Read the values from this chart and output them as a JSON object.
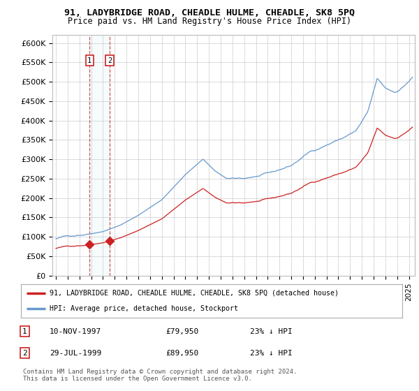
{
  "title": "91, LADYBRIDGE ROAD, CHEADLE HULME, CHEADLE, SK8 5PQ",
  "subtitle": "Price paid vs. HM Land Registry's House Price Index (HPI)",
  "ylabel_ticks": [
    "£0",
    "£50K",
    "£100K",
    "£150K",
    "£200K",
    "£250K",
    "£300K",
    "£350K",
    "£400K",
    "£450K",
    "£500K",
    "£550K",
    "£600K"
  ],
  "ytick_values": [
    0,
    50000,
    100000,
    150000,
    200000,
    250000,
    300000,
    350000,
    400000,
    450000,
    500000,
    550000,
    600000
  ],
  "ylim": [
    0,
    620000
  ],
  "sale1": {
    "date_num": 1997.86,
    "price": 79950,
    "label": "1"
  },
  "sale2": {
    "date_num": 1999.57,
    "price": 89950,
    "label": "2"
  },
  "legend_line1": "91, LADYBRIDGE ROAD, CHEADLE HULME, CHEADLE, SK8 5PQ (detached house)",
  "legend_line2": "HPI: Average price, detached house, Stockport",
  "footer": "Contains HM Land Registry data © Crown copyright and database right 2024.\nThis data is licensed under the Open Government Licence v3.0.",
  "hpi_color": "#6699cc",
  "price_color": "#cc2222",
  "vline_color": "#cc4444",
  "bg_color": "#ffffff",
  "grid_color": "#cccccc",
  "noise_seed": 42
}
